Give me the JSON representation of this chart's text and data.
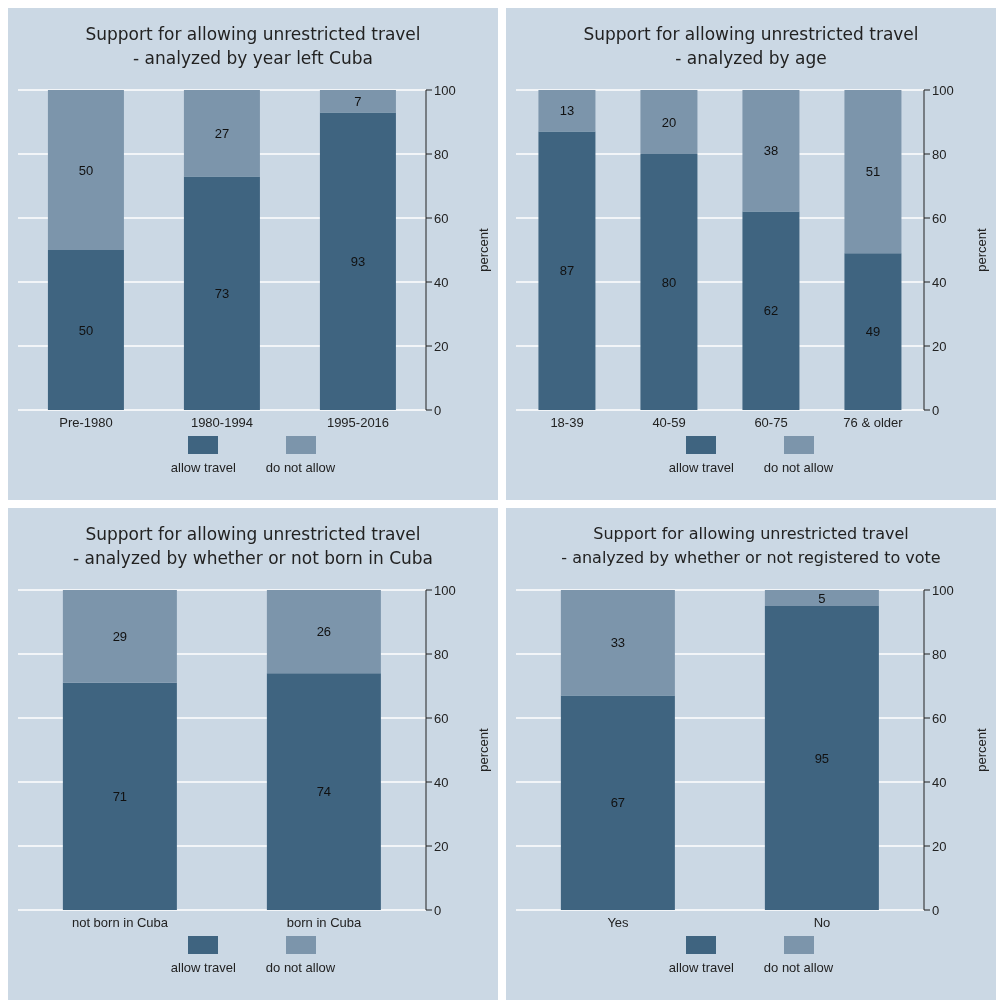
{
  "chart_data": [
    {
      "type": "bar",
      "title": "Support for allowing unrestricted travel",
      "subtitle": "- analyzed by year left Cuba",
      "ylabel": "percent",
      "categories": [
        "Pre-1980",
        "1980-1994",
        "1995-2016"
      ],
      "stacked": true,
      "data_labels": true,
      "grid": "y",
      "legend": "bottom",
      "ylim": [
        0,
        100
      ],
      "yticks": [
        0,
        20,
        40,
        60,
        80,
        100
      ],
      "series": [
        {
          "name": "allow travel",
          "color": "#3f6480",
          "values": [
            50,
            73,
            93
          ]
        },
        {
          "name": "do not allow",
          "color": "#7c95ab",
          "values": [
            50,
            27,
            7
          ]
        }
      ]
    },
    {
      "type": "bar",
      "title": "Support for allowing unrestricted travel",
      "subtitle": "- analyzed by age",
      "ylabel": "percent",
      "categories": [
        "18-39",
        "40-59",
        "60-75",
        "76 & older"
      ],
      "stacked": true,
      "data_labels": true,
      "grid": "y",
      "legend": "bottom",
      "ylim": [
        0,
        100
      ],
      "yticks": [
        0,
        20,
        40,
        60,
        80,
        100
      ],
      "series": [
        {
          "name": "allow travel",
          "color": "#3f6480",
          "values": [
            87,
            80,
            62,
            49
          ]
        },
        {
          "name": "do not allow",
          "color": "#7c95ab",
          "values": [
            13,
            20,
            38,
            51
          ]
        }
      ]
    },
    {
      "type": "bar",
      "title": "Support for allowing unrestricted travel",
      "subtitle": "- analyzed by whether or not born in Cuba",
      "ylabel": "percent",
      "categories": [
        "not born in Cuba",
        "born in Cuba"
      ],
      "stacked": true,
      "data_labels": true,
      "grid": "y",
      "legend": "bottom",
      "ylim": [
        0,
        100
      ],
      "yticks": [
        0,
        20,
        40,
        60,
        80,
        100
      ],
      "series": [
        {
          "name": "allow travel",
          "color": "#3f6480",
          "values": [
            71,
            74
          ]
        },
        {
          "name": "do not allow",
          "color": "#7c95ab",
          "values": [
            29,
            26
          ]
        }
      ]
    },
    {
      "type": "bar",
      "title": "Support for allowing unrestricted travel",
      "subtitle": "- analyzed by whether or not registered to vote",
      "ylabel": "percent",
      "categories": [
        "Yes",
        "No"
      ],
      "stacked": true,
      "data_labels": true,
      "grid": "y",
      "legend": "bottom",
      "ylim": [
        0,
        100
      ],
      "yticks": [
        0,
        20,
        40,
        60,
        80,
        100
      ],
      "series": [
        {
          "name": "allow travel",
          "color": "#3f6480",
          "values": [
            67,
            95
          ]
        },
        {
          "name": "do not allow",
          "color": "#7c95ab",
          "values": [
            33,
            5
          ]
        }
      ]
    }
  ]
}
